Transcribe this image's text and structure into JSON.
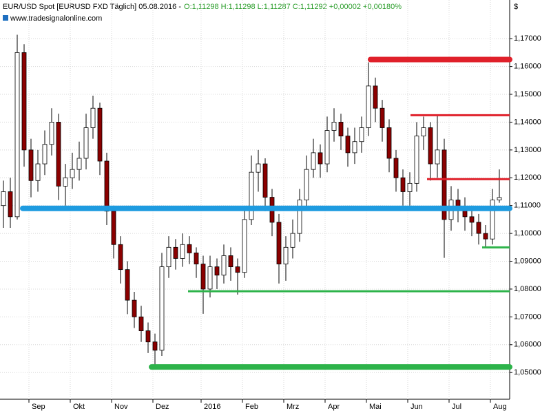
{
  "chart_data": {
    "type": "candlestick",
    "title": "EUR/USD Spot [EURUSD FXD  Täglich] 05.08.2016 -",
    "subtitle": "O:1,11298 H:1,11298 L:1,11287 C:1,11292 +0,00002 +0,00180%",
    "source": "www.tradesignalonline.com",
    "y_unit": "$",
    "up_color": "#ffffff",
    "down_color": "#8b0000",
    "outline_color": "#000000",
    "categories": [
      null,
      null,
      null,
      null,
      "Sep",
      null,
      null,
      null,
      null,
      null,
      "Okt",
      null,
      null,
      null,
      null,
      null,
      "Nov",
      null,
      null,
      null,
      null,
      null,
      "Dez",
      null,
      null,
      null,
      null,
      null,
      null,
      "2016",
      null,
      null,
      null,
      null,
      null,
      "Feb",
      null,
      null,
      null,
      null,
      null,
      "Mrz",
      null,
      null,
      null,
      null,
      null,
      "Apr",
      null,
      null,
      null,
      null,
      null,
      "Mai",
      null,
      null,
      null,
      null,
      null,
      "Jun",
      null,
      null,
      null,
      null,
      null,
      "Jul",
      null,
      null,
      null,
      null,
      null,
      "Aug",
      null
    ],
    "open": [
      1.11,
      1.115,
      1.106,
      1.165,
      1.13,
      1.119,
      1.125,
      1.132,
      1.14,
      1.117,
      1.12,
      1.123,
      1.127,
      1.138,
      1.145,
      1.126,
      1.108,
      1.096,
      1.087,
      1.076,
      1.07,
      1.065,
      1.061,
      1.058,
      1.088,
      1.095,
      1.091,
      1.096,
      1.093,
      1.089,
      1.08,
      1.088,
      1.085,
      1.092,
      1.088,
      1.086,
      1.105,
      1.122,
      1.125,
      1.113,
      1.104,
      1.089,
      1.095,
      1.1,
      1.112,
      1.123,
      1.129,
      1.125,
      1.137,
      1.14,
      1.135,
      1.129,
      1.133,
      1.138,
      1.153,
      1.145,
      1.138,
      1.127,
      1.12,
      1.115,
      1.118,
      1.135,
      1.138,
      1.125,
      1.13,
      1.105,
      1.112,
      1.109,
      1.106,
      1.104,
      1.1,
      1.098,
      1.112
    ],
    "high": [
      1.119,
      1.12,
      1.1714,
      1.168,
      1.134,
      1.13,
      1.137,
      1.145,
      1.143,
      1.125,
      1.129,
      1.133,
      1.143,
      1.1495,
      1.147,
      1.129,
      1.11,
      1.099,
      1.09,
      1.079,
      1.074,
      1.068,
      1.064,
      1.093,
      1.099,
      1.098,
      1.1,
      1.099,
      1.095,
      1.092,
      1.092,
      1.091,
      1.096,
      1.095,
      1.091,
      1.109,
      1.128,
      1.13,
      1.127,
      1.116,
      1.107,
      1.099,
      1.105,
      1.116,
      1.128,
      1.134,
      1.132,
      1.142,
      1.145,
      1.143,
      1.138,
      1.138,
      1.142,
      1.1615,
      1.156,
      1.148,
      1.141,
      1.13,
      1.123,
      1.122,
      1.14,
      1.142,
      1.14,
      1.1425,
      1.134,
      1.117,
      1.116,
      1.113,
      1.11,
      1.107,
      1.103,
      1.116,
      1.123
    ],
    "low": [
      1.102,
      1.102,
      1.105,
      1.124,
      1.113,
      1.115,
      1.121,
      1.128,
      1.112,
      1.11,
      1.116,
      1.119,
      1.123,
      1.134,
      1.121,
      1.103,
      1.091,
      1.082,
      1.071,
      1.066,
      1.061,
      1.057,
      1.0525,
      1.056,
      1.084,
      1.087,
      1.088,
      1.089,
      1.084,
      1.0711,
      1.077,
      1.08,
      1.082,
      1.083,
      1.078,
      1.084,
      1.103,
      1.115,
      1.108,
      1.099,
      1.082,
      1.083,
      1.091,
      1.097,
      1.109,
      1.12,
      1.12,
      1.122,
      1.133,
      1.13,
      1.124,
      1.125,
      1.129,
      1.135,
      1.14,
      1.133,
      1.122,
      1.115,
      1.11,
      1.11,
      1.115,
      1.13,
      1.119,
      1.12,
      1.0912,
      1.101,
      1.104,
      1.101,
      1.099,
      1.096,
      1.0952,
      1.096,
      1.111
    ],
    "close": [
      1.115,
      1.106,
      1.165,
      1.13,
      1.119,
      1.125,
      1.132,
      1.14,
      1.117,
      1.12,
      1.123,
      1.127,
      1.138,
      1.145,
      1.126,
      1.108,
      1.096,
      1.087,
      1.076,
      1.07,
      1.065,
      1.061,
      1.058,
      1.088,
      1.095,
      1.091,
      1.096,
      1.093,
      1.089,
      1.08,
      1.088,
      1.085,
      1.092,
      1.088,
      1.086,
      1.105,
      1.122,
      1.125,
      1.113,
      1.104,
      1.089,
      1.095,
      1.1,
      1.112,
      1.123,
      1.129,
      1.125,
      1.137,
      1.14,
      1.135,
      1.129,
      1.133,
      1.138,
      1.153,
      1.145,
      1.138,
      1.127,
      1.12,
      1.115,
      1.118,
      1.135,
      1.138,
      1.125,
      1.13,
      1.105,
      1.112,
      1.109,
      1.106,
      1.104,
      1.1,
      1.098,
      1.112,
      1.1129
    ],
    "levels": [
      {
        "value": 1.1625,
        "color": "#e0202a"
      },
      {
        "value": 1.1425,
        "color": "#e0202a"
      },
      {
        "value": 1.1195,
        "color": "#e0202a"
      },
      {
        "value": 1.109,
        "color": "#1e9be0"
      },
      {
        "value": 1.095,
        "color": "#2db34a"
      },
      {
        "value": 1.0792,
        "color": "#2db34a"
      },
      {
        "value": 1.052,
        "color": "#2db34a"
      }
    ],
    "ylim": [
      1.0404,
      1.1839
    ],
    "yticks": [
      {
        "value": 1.05,
        "label": "1,05000"
      },
      {
        "value": 1.06,
        "label": "1,06000"
      },
      {
        "value": 1.07,
        "label": "1,07000"
      },
      {
        "value": 1.08,
        "label": "1,08000"
      },
      {
        "value": 1.09,
        "label": "1,09000"
      },
      {
        "value": 1.1,
        "label": "1,10000"
      },
      {
        "value": 1.11,
        "label": "1,11000"
      },
      {
        "value": 1.12,
        "label": "1,12000"
      },
      {
        "value": 1.13,
        "label": "1,13000"
      },
      {
        "value": 1.14,
        "label": "1,14000"
      },
      {
        "value": 1.15,
        "label": "1,15000"
      },
      {
        "value": 1.16,
        "label": "1,16000"
      },
      {
        "value": 1.17,
        "label": "1,17000"
      }
    ],
    "grid": true
  }
}
